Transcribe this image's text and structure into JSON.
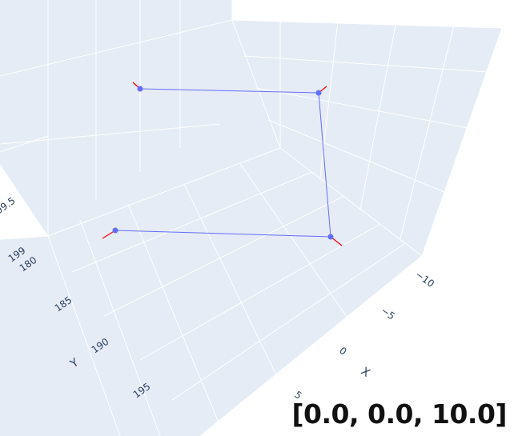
{
  "chart_data": {
    "type": "scatter3d",
    "title": "",
    "axes": {
      "x": {
        "label": "X",
        "ticks": [
          "−10",
          "−5",
          "0",
          "5"
        ]
      },
      "y": {
        "label": "Y",
        "ticks": [
          "180",
          "185",
          "190",
          "195"
        ]
      },
      "z": {
        "label": "",
        "ticks": [
          "199",
          "99.5"
        ]
      }
    },
    "series": [
      {
        "mode": "lines+markers",
        "color": "#636efa",
        "points": [
          {
            "x": -8,
            "y": 180,
            "z": 199.8
          },
          {
            "x": 8,
            "y": 180,
            "z": 199.8
          },
          {
            "x": 8,
            "y": 185,
            "z": 199
          },
          {
            "x": -8,
            "y": 185,
            "z": 199
          }
        ]
      }
    ],
    "normal_vector_color": "#ff0000"
  },
  "overlay": {
    "camera_vector": "[0.0, 0.0, 10.0]"
  },
  "colors": {
    "plot_background": "#e5ecf6",
    "grid": "#ffffff",
    "tick_text": "#2a3f5f"
  }
}
